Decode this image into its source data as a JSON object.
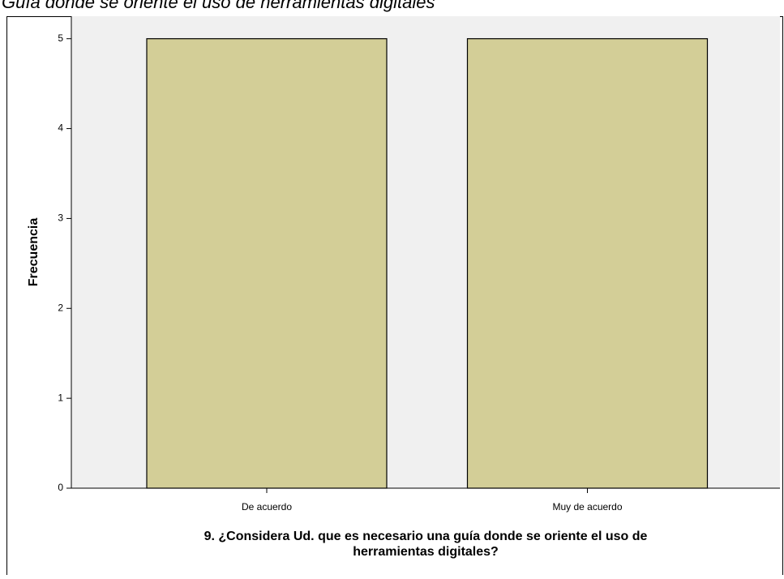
{
  "chart_data": {
    "type": "bar",
    "title": "Guía donde se oriente el uso de herramientas digitales",
    "xlabel": [
      "9. ¿Considera Ud. que es necesario una guía donde se oriente el uso de",
      "herramientas digitales?"
    ],
    "ylabel": "Frecuencia",
    "categories": [
      "De acuerdo",
      "Muy de acuerdo"
    ],
    "values": [
      5,
      5
    ],
    "color": "#d3ce97",
    "ylim": [
      0,
      5.25
    ],
    "yticks": [
      0,
      1,
      2,
      3,
      4,
      5
    ]
  }
}
